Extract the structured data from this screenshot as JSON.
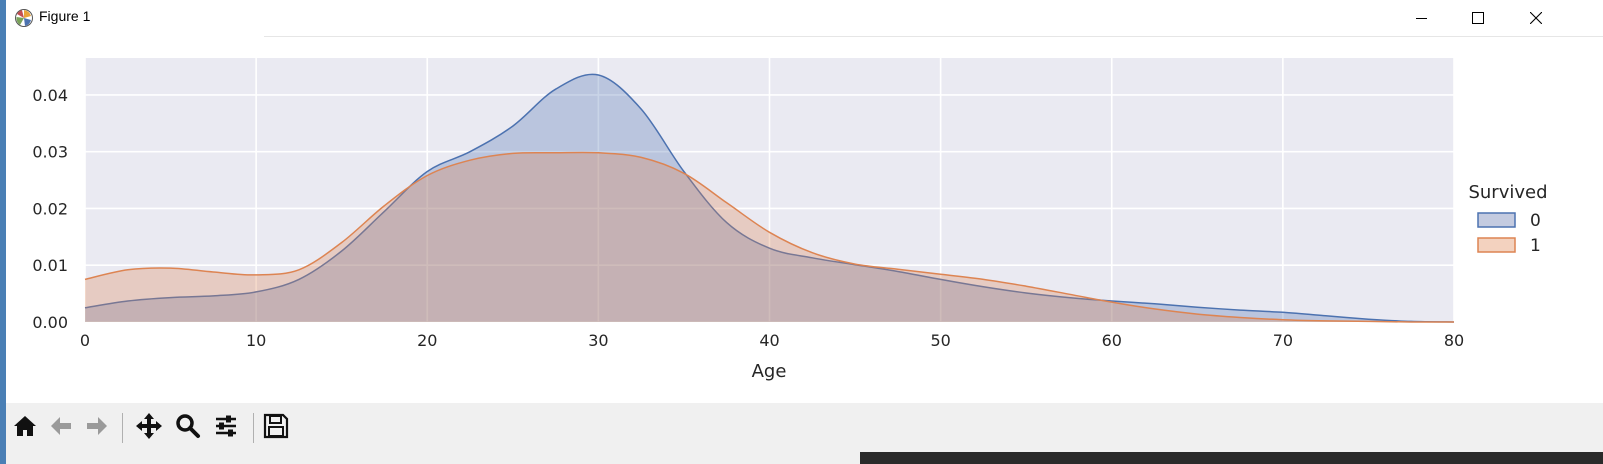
{
  "window": {
    "title": "Figure 1"
  },
  "toolbar": {
    "buttons": [
      {
        "name": "home-icon"
      },
      {
        "name": "back-arrow-icon"
      },
      {
        "name": "forward-arrow-icon"
      },
      {
        "name": "pan-move-icon"
      },
      {
        "name": "zoom-magnifier-icon"
      },
      {
        "name": "configure-subplots-icon"
      },
      {
        "name": "save-floppy-icon"
      }
    ]
  },
  "colors": {
    "plot_background": "#eaeaf2",
    "grid": "#ffffff",
    "series_0": "#4c72b0",
    "series_1": "#dd8452"
  },
  "chart_data": {
    "type": "area",
    "title": "",
    "xlabel": "Age",
    "ylabel": "",
    "xlim": [
      0,
      80
    ],
    "ylim": [
      0,
      0.0465
    ],
    "xticks": [
      0,
      10,
      20,
      30,
      40,
      50,
      60,
      70,
      80
    ],
    "yticks": [
      0.0,
      0.01,
      0.02,
      0.03,
      0.04
    ],
    "ytick_labels": [
      "0.00",
      "0.01",
      "0.02",
      "0.03",
      "0.04"
    ],
    "grid": true,
    "legend": {
      "title": "Survived",
      "placement": "right",
      "entries": [
        "0",
        "1"
      ]
    },
    "x": [
      0,
      2.5,
      5,
      7.5,
      10,
      12.5,
      15,
      17.5,
      20,
      22.5,
      25,
      27.5,
      30,
      32.5,
      35,
      37.5,
      40,
      42.5,
      45,
      47.5,
      50,
      52.5,
      55,
      57.5,
      60,
      62.5,
      65,
      67.5,
      70,
      72.5,
      75,
      77.5,
      80
    ],
    "series": [
      {
        "name": "0",
        "color": "#4c72b0",
        "values": [
          0.0025,
          0.0037,
          0.0043,
          0.0046,
          0.0053,
          0.0075,
          0.0125,
          0.0195,
          0.0265,
          0.03,
          0.0345,
          0.041,
          0.0435,
          0.0375,
          0.0265,
          0.0175,
          0.013,
          0.0113,
          0.0101,
          0.0089,
          0.0075,
          0.0062,
          0.0051,
          0.0043,
          0.0037,
          0.0032,
          0.0026,
          0.0021,
          0.0017,
          0.0011,
          0.0005,
          0.0001,
          0.0
        ]
      },
      {
        "name": "1",
        "color": "#dd8452",
        "values": [
          0.0075,
          0.0092,
          0.0095,
          0.0088,
          0.0083,
          0.0092,
          0.014,
          0.0205,
          0.0258,
          0.0285,
          0.0297,
          0.0298,
          0.0298,
          0.029,
          0.0262,
          0.021,
          0.0158,
          0.0122,
          0.0102,
          0.0093,
          0.0084,
          0.0075,
          0.0063,
          0.0049,
          0.0035,
          0.0023,
          0.0014,
          0.0008,
          0.0004,
          0.0002,
          0.0001,
          0.0,
          0.0
        ]
      }
    ]
  }
}
